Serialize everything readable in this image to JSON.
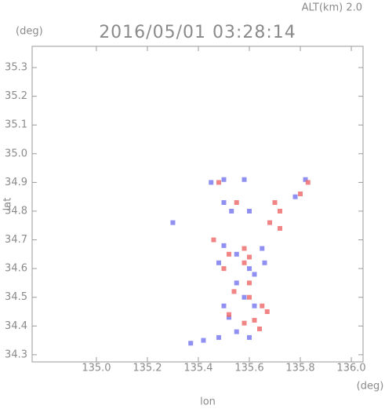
{
  "chart_data": {
    "type": "scatter",
    "title": "2016/05/01 03:28:14",
    "altitude_label": "ALT(km) 2.0",
    "y_unit": "(deg)",
    "x_unit": "(deg)",
    "x_label": "lon",
    "y_label": "lat",
    "xlim": [
      134.748,
      136.046
    ],
    "ylim": [
      34.275,
      35.374
    ],
    "xticks": [
      {
        "value": 135.0,
        "label": "135.0"
      },
      135.2,
      135.4,
      135.6,
      135.8,
      {
        "value": 136.0,
        "label": "136.0"
      }
    ],
    "yticks": [
      34.3,
      34.4,
      34.5,
      34.6,
      34.7,
      34.8,
      34.9,
      {
        "value": 35.0,
        "label": "35.0"
      },
      35.1,
      35.2,
      35.3
    ],
    "series": [
      {
        "color": "#7c7cf0",
        "x": [
          135.45,
          135.5,
          135.58,
          135.5,
          135.53,
          135.6,
          135.3,
          135.78,
          135.82,
          135.5,
          135.55,
          135.48,
          135.6,
          135.55,
          135.62,
          135.58,
          135.62,
          135.5,
          135.52,
          135.55,
          135.6,
          135.48,
          135.42,
          135.37,
          135.66,
          135.65
        ],
        "y": [
          34.9,
          34.91,
          34.91,
          34.83,
          34.8,
          34.8,
          34.76,
          34.85,
          34.91,
          34.68,
          34.65,
          34.62,
          34.6,
          34.55,
          34.58,
          34.5,
          34.47,
          34.47,
          34.43,
          34.38,
          34.36,
          34.36,
          34.35,
          34.34,
          34.62,
          34.67
        ]
      },
      {
        "color": "#ee7070",
        "x": [
          135.48,
          135.55,
          135.7,
          135.72,
          135.68,
          135.72,
          135.8,
          135.83,
          135.58,
          135.6,
          135.5,
          135.58,
          135.54,
          135.6,
          135.65,
          135.67,
          135.62,
          135.58,
          135.52,
          135.64,
          135.46,
          135.6,
          135.52
        ],
        "y": [
          34.9,
          34.83,
          34.83,
          34.8,
          34.76,
          34.74,
          34.86,
          34.9,
          34.67,
          34.64,
          34.6,
          34.62,
          34.52,
          34.5,
          34.47,
          34.45,
          34.42,
          34.41,
          34.44,
          34.39,
          34.7,
          34.55,
          34.65
        ]
      }
    ]
  }
}
